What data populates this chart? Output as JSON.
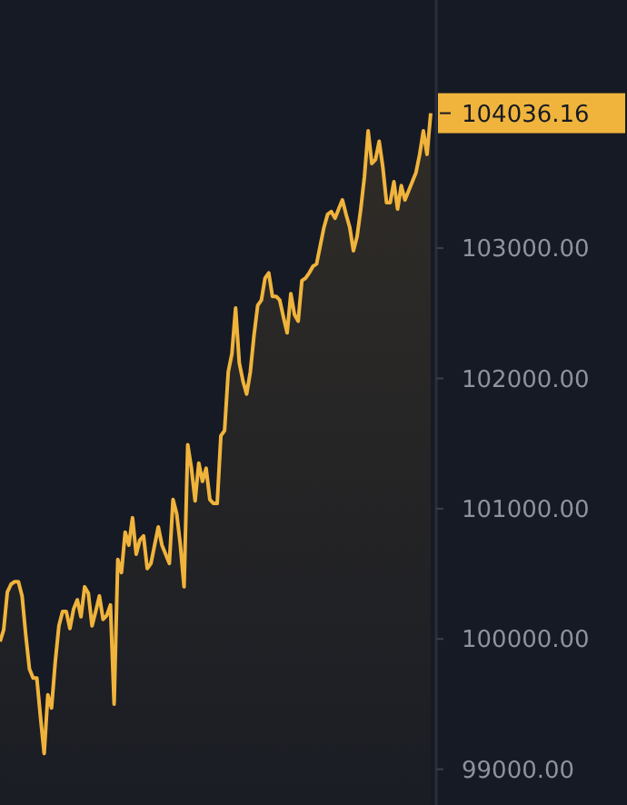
{
  "chart_data": {
    "type": "area",
    "categories": [
      null,
      null,
      null,
      null,
      null,
      null,
      null,
      null,
      null,
      null,
      null,
      null,
      null,
      null,
      null,
      null,
      null,
      null,
      null,
      null,
      null,
      null,
      null,
      null,
      null,
      null,
      null,
      null,
      null,
      null,
      null,
      null,
      null,
      null,
      null,
      null,
      null,
      null,
      null,
      null,
      null,
      null,
      null,
      null,
      null,
      null,
      null,
      null,
      null,
      null,
      null,
      null,
      null,
      null,
      null,
      null,
      null,
      null,
      null,
      null,
      null,
      null,
      null,
      null,
      null,
      null,
      null,
      null,
      null,
      null,
      null,
      null,
      null,
      null,
      null,
      null,
      null,
      null,
      null,
      null,
      null,
      null,
      null,
      null,
      null,
      null,
      null,
      null,
      null,
      null,
      null,
      null,
      null,
      null,
      null,
      null,
      null,
      null,
      null,
      null,
      null,
      null,
      null,
      null,
      null,
      null,
      null,
      null,
      null,
      null,
      null,
      null,
      null,
      null,
      null,
      null,
      null,
      null
    ],
    "series": [
      {
        "color": "#f0b43c",
        "values": [
          99980,
          100070,
          100360,
          100420,
          100440,
          100440,
          100330,
          100030,
          99770,
          99700,
          99700,
          99400,
          99120,
          99570,
          99470,
          99820,
          100100,
          100210,
          100210,
          100080,
          100230,
          100300,
          100170,
          100400,
          100350,
          100100,
          100210,
          100330,
          100150,
          100180,
          100260,
          99500,
          100610,
          100510,
          100820,
          100720,
          100930,
          100650,
          100760,
          100790,
          100540,
          100580,
          100720,
          100860,
          100720,
          100650,
          100580,
          101070,
          100960,
          100720,
          100400,
          101490,
          101310,
          101060,
          101350,
          101210,
          101310,
          101070,
          101040,
          101040,
          101560,
          101600,
          102050,
          102190,
          102540,
          102120,
          101980,
          101880,
          102050,
          102330,
          102560,
          102600,
          102770,
          102810,
          102630,
          102630,
          102600,
          102470,
          102350,
          102650,
          102490,
          102440,
          102750,
          102770,
          102810,
          102860,
          102880,
          103020,
          103160,
          103260,
          103280,
          103230,
          103300,
          103370,
          103260,
          103160,
          102980,
          103090,
          103300,
          103550,
          103900,
          103650,
          103680,
          103820,
          103620,
          103350,
          103350,
          103510,
          103300,
          103480,
          103370,
          103440,
          103510,
          103580,
          103720,
          103900,
          103720,
          104036.16
        ]
      }
    ],
    "ylim": [
      98725,
      104905
    ],
    "yticks": [
      {
        "value": 99000,
        "label": "99000.00"
      },
      {
        "value": 100000,
        "label": "100000.00"
      },
      {
        "value": 101000,
        "label": "101000.00"
      },
      {
        "value": 102000,
        "label": "102000.00"
      },
      {
        "value": 103000,
        "label": "103000.00"
      }
    ],
    "annotations": [
      "104036.16"
    ],
    "grid": false
  }
}
